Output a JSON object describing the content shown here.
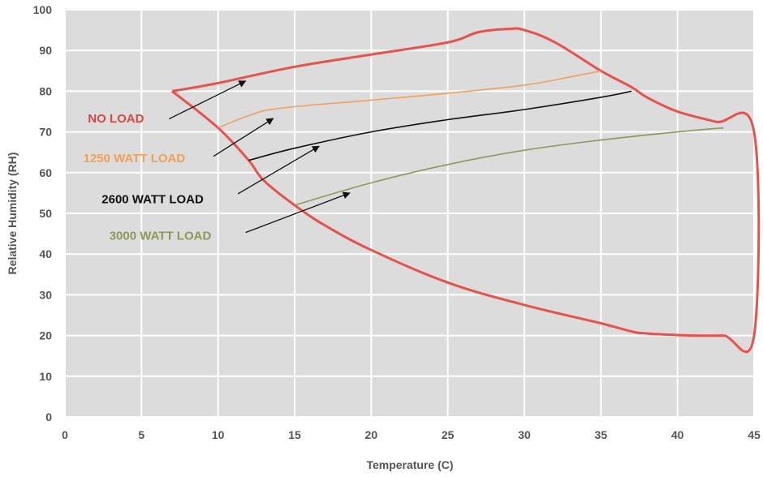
{
  "chart_data": {
    "type": "line",
    "xlabel": "Temperature (C)",
    "ylabel": "Relative Humidity (RH)",
    "xlim": [
      0,
      45
    ],
    "ylim": [
      0,
      100
    ],
    "xticks": [
      0,
      5,
      10,
      15,
      20,
      25,
      30,
      35,
      40,
      45
    ],
    "yticks": [
      0,
      10,
      20,
      30,
      40,
      50,
      60,
      70,
      80,
      90,
      100
    ],
    "grid": true,
    "series": [
      {
        "name": "NO LOAD",
        "color": "#e8524a",
        "closed": true,
        "points": [
          [
            7,
            80
          ],
          [
            10,
            82
          ],
          [
            15,
            86
          ],
          [
            20,
            89
          ],
          [
            25,
            92
          ],
          [
            27,
            94.5
          ],
          [
            29,
            95.3
          ],
          [
            30,
            95
          ],
          [
            32,
            92
          ],
          [
            35,
            85
          ],
          [
            37,
            81
          ],
          [
            38,
            78.5
          ],
          [
            40,
            75
          ],
          [
            42.5,
            72.5
          ],
          [
            45,
            70
          ],
          [
            45,
            20
          ],
          [
            43,
            20
          ],
          [
            41,
            20
          ],
          [
            38,
            20.5
          ],
          [
            37,
            21
          ],
          [
            35,
            23
          ],
          [
            30,
            27.5
          ],
          [
            25,
            33
          ],
          [
            20,
            41
          ],
          [
            17,
            47
          ],
          [
            15,
            52
          ],
          [
            13,
            58
          ],
          [
            12,
            63
          ],
          [
            10,
            71
          ],
          [
            7,
            80
          ]
        ]
      },
      {
        "name": "1250 WATT LOAD",
        "color": "#f0a05a",
        "points": [
          [
            10,
            71
          ],
          [
            12,
            74
          ],
          [
            14,
            75.8
          ],
          [
            20,
            77.8
          ],
          [
            25,
            79.5
          ],
          [
            30,
            81.5
          ],
          [
            33,
            83.5
          ],
          [
            35,
            85
          ]
        ]
      },
      {
        "name": "2600 WATT LOAD",
        "color": "#111111",
        "points": [
          [
            12,
            63
          ],
          [
            15,
            66
          ],
          [
            20,
            70
          ],
          [
            25,
            73
          ],
          [
            30,
            75.5
          ],
          [
            35,
            78.5
          ],
          [
            37,
            80
          ]
        ]
      },
      {
        "name": "3000 WATT LOAD",
        "color": "#8a9a5b",
        "points": [
          [
            15,
            52
          ],
          [
            20,
            57.5
          ],
          [
            25,
            62
          ],
          [
            30,
            65.5
          ],
          [
            35,
            68
          ],
          [
            40,
            70
          ],
          [
            43,
            71
          ]
        ]
      }
    ],
    "annotations": [
      {
        "text": "NO LOAD",
        "color": "#d9473e",
        "label_at": [
          1.5,
          73.3
        ],
        "arrow_from": [
          6.8,
          73.2
        ],
        "arrow_to": [
          11.8,
          82.5
        ]
      },
      {
        "text": "1250 WATT LOAD",
        "color": "#f0a05a",
        "label_at": [
          1.2,
          63.5
        ],
        "arrow_from": [
          9.7,
          64
        ],
        "arrow_to": [
          13.6,
          73.3
        ]
      },
      {
        "text": "2600 WATT LOAD",
        "color": "#111111",
        "label_at": [
          2.4,
          53.5
        ],
        "arrow_from": [
          11.3,
          54.8
        ],
        "arrow_to": [
          16.6,
          66.5
        ]
      },
      {
        "text": "3000 WATT LOAD",
        "color": "#8a9a5b",
        "label_at": [
          2.9,
          44.5
        ],
        "arrow_from": [
          11.8,
          45.3
        ],
        "arrow_to": [
          18.6,
          55
        ]
      }
    ]
  }
}
